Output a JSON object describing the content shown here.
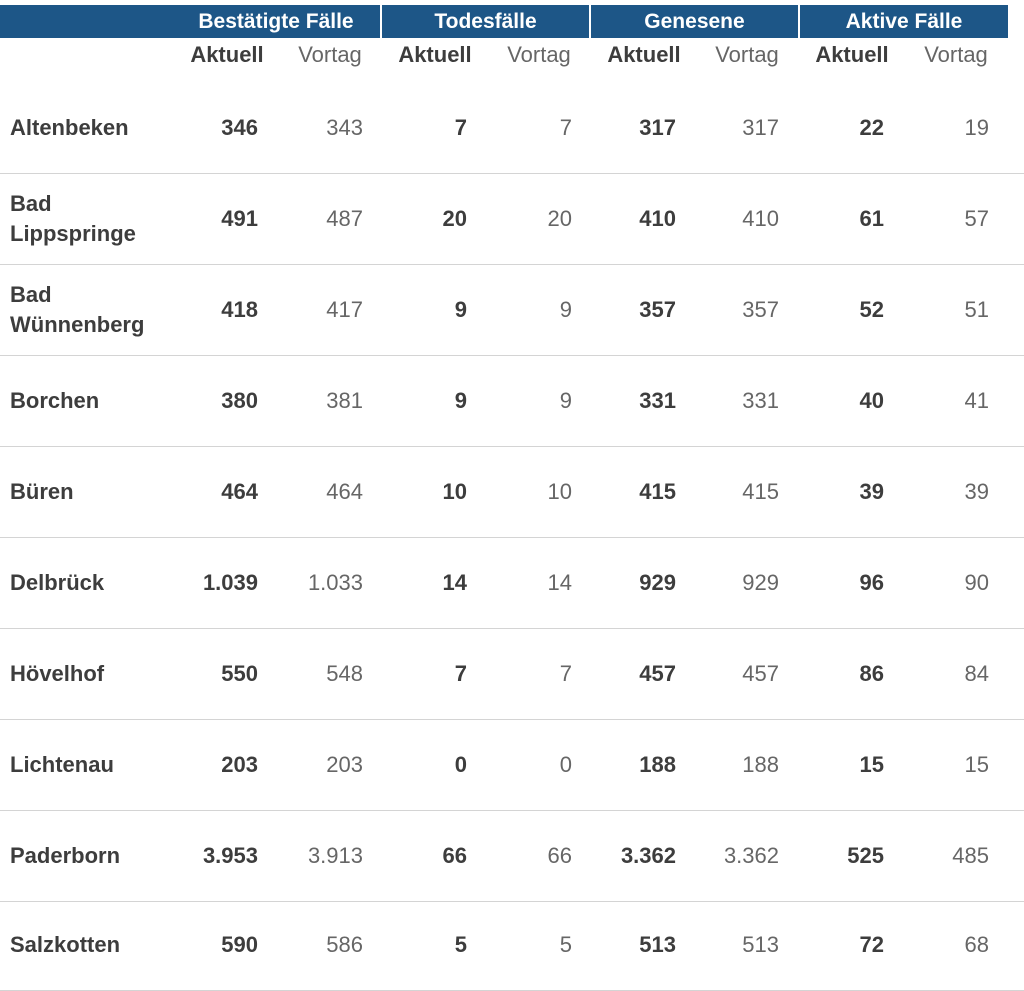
{
  "groups": [
    {
      "label": "Bestätigte Fälle"
    },
    {
      "label": "Todesfälle"
    },
    {
      "label": "Genesene"
    },
    {
      "label": "Aktive Fälle"
    }
  ],
  "subheaders": {
    "current": "Aktuell",
    "previous": "Vortag"
  },
  "rows": [
    {
      "name": "Altenbeken",
      "cases": "346",
      "cases_prev": "343",
      "deaths": "7",
      "deaths_prev": "7",
      "recovered": "317",
      "recovered_prev": "317",
      "active": "22",
      "active_prev": "19"
    },
    {
      "name": "Bad Lippspringe",
      "cases": "491",
      "cases_prev": "487",
      "deaths": "20",
      "deaths_prev": "20",
      "recovered": "410",
      "recovered_prev": "410",
      "active": "61",
      "active_prev": "57"
    },
    {
      "name": "Bad Wünnenberg",
      "cases": "418",
      "cases_prev": "417",
      "deaths": "9",
      "deaths_prev": "9",
      "recovered": "357",
      "recovered_prev": "357",
      "active": "52",
      "active_prev": "51"
    },
    {
      "name": "Borchen",
      "cases": "380",
      "cases_prev": "381",
      "deaths": "9",
      "deaths_prev": "9",
      "recovered": "331",
      "recovered_prev": "331",
      "active": "40",
      "active_prev": "41"
    },
    {
      "name": "Büren",
      "cases": "464",
      "cases_prev": "464",
      "deaths": "10",
      "deaths_prev": "10",
      "recovered": "415",
      "recovered_prev": "415",
      "active": "39",
      "active_prev": "39"
    },
    {
      "name": "Delbrück",
      "cases": "1.039",
      "cases_prev": "1.033",
      "deaths": "14",
      "deaths_prev": "14",
      "recovered": "929",
      "recovered_prev": "929",
      "active": "96",
      "active_prev": "90"
    },
    {
      "name": "Hövelhof",
      "cases": "550",
      "cases_prev": "548",
      "deaths": "7",
      "deaths_prev": "7",
      "recovered": "457",
      "recovered_prev": "457",
      "active": "86",
      "active_prev": "84"
    },
    {
      "name": "Lichtenau",
      "cases": "203",
      "cases_prev": "203",
      "deaths": "0",
      "deaths_prev": "0",
      "recovered": "188",
      "recovered_prev": "188",
      "active": "15",
      "active_prev": "15"
    },
    {
      "name": "Paderborn",
      "cases": "3.953",
      "cases_prev": "3.913",
      "deaths": "66",
      "deaths_prev": "66",
      "recovered": "3.362",
      "recovered_prev": "3.362",
      "active": "525",
      "active_prev": "485"
    },
    {
      "name": "Salzkotten",
      "cases": "590",
      "cases_prev": "586",
      "deaths": "5",
      "deaths_prev": "5",
      "recovered": "513",
      "recovered_prev": "513",
      "active": "72",
      "active_prev": "68"
    }
  ],
  "colors": {
    "header_bg": "#1d5687",
    "header_text": "#ffffff",
    "row_divider": "#d4d4d4",
    "text_bold": "#3d3d3d",
    "text_light": "#666666"
  }
}
